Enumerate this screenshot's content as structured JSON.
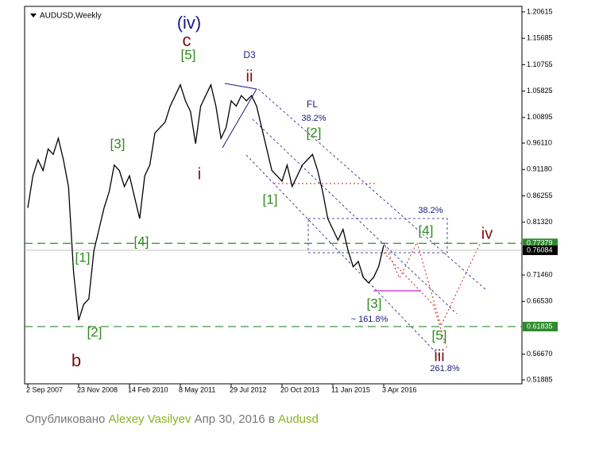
{
  "chart_data": {
    "type": "line",
    "title": "AUDUSD,Weekly",
    "color": "#000000",
    "categories": [
      "2 Sep 2007",
      null,
      null,
      null,
      null,
      null,
      null,
      null,
      null,
      null,
      "23 Nov 2008",
      null,
      null,
      null,
      null,
      null,
      null,
      null,
      null,
      null,
      "14 Feb 2010",
      null,
      null,
      null,
      null,
      null,
      null,
      null,
      null,
      null,
      "8 May 2011",
      null,
      null,
      null,
      null,
      null,
      null,
      null,
      null,
      null,
      "29 Jul 2012",
      null,
      null,
      null,
      null,
      null,
      null,
      null,
      null,
      null,
      "20 Oct 2013",
      null,
      null,
      null,
      null,
      null,
      null,
      null,
      null,
      null,
      "11 Jan 2015",
      null,
      null,
      null,
      null,
      null,
      null,
      null,
      null,
      null,
      "3 Apr 2016"
    ],
    "values": [
      0.84,
      0.9,
      0.93,
      0.91,
      0.95,
      0.94,
      0.97,
      0.93,
      0.88,
      0.72,
      0.63,
      0.66,
      0.67,
      0.76,
      0.8,
      0.84,
      0.87,
      0.92,
      0.91,
      0.88,
      0.9,
      0.86,
      0.82,
      0.9,
      0.92,
      0.98,
      0.99,
      1.0,
      1.03,
      1.05,
      1.07,
      1.04,
      1.02,
      0.96,
      1.03,
      1.05,
      1.07,
      1.03,
      0.97,
      0.99,
      1.04,
      1.03,
      1.05,
      1.04,
      1.05,
      1.03,
      0.99,
      0.95,
      0.91,
      0.9,
      0.89,
      0.92,
      0.88,
      0.9,
      0.92,
      0.93,
      0.94,
      0.91,
      0.87,
      0.82,
      0.8,
      0.78,
      0.8,
      0.76,
      0.73,
      0.74,
      0.71,
      0.7,
      0.71,
      0.73,
      0.77
    ],
    "ylim": [
      0.5114,
      1.2165
    ],
    "yticks": [
      1.20615,
      1.15685,
      1.10755,
      1.05825,
      1.00895,
      {
        "value": 0.9611,
        "label": "0.96110"
      },
      {
        "value": 0.9118,
        "label": "0.91180"
      },
      0.86255,
      {
        "value": 0.8132,
        "label": "0.81320"
      },
      {
        "value": 0.7146,
        "label": "0.71460"
      },
      {
        "value": 0.6653,
        "label": "0.66530"
      },
      {
        "value": 0.5667,
        "label": "0.56670"
      },
      0.51885
    ],
    "levels": [
      {
        "value": 0.77379,
        "color": "#2e8b2e",
        "dashed": true
      },
      {
        "value": 0.76084,
        "color": "#000000",
        "dashed": false
      },
      {
        "value": 0.61835,
        "color": "#2e8b2e",
        "dashed": true
      }
    ],
    "annotations": [
      {
        "text": "(iv)",
        "color": "#1a1a80"
      },
      {
        "text": "c",
        "color": "#7a1010"
      },
      {
        "text": "[5]",
        "color": "#2f8a1f"
      },
      {
        "text": "D3",
        "color": "#1a1a80"
      },
      {
        "text": "ii",
        "color": "#7a1010"
      },
      {
        "text": "FL",
        "color": "#1a1a80"
      },
      {
        "text": "38.2%",
        "color": "#1a1a80"
      },
      {
        "text": "[2]",
        "color": "#2f8a1f"
      },
      {
        "text": "[3]",
        "color": "#2f8a1f"
      },
      {
        "text": "i",
        "color": "#7a1010"
      },
      {
        "text": "[1]",
        "color": "#2f8a1f"
      },
      {
        "text": "38.2%",
        "color": "#1a1a80"
      },
      {
        "text": "[4]",
        "color": "#2f8a1f"
      },
      {
        "text": "iv",
        "color": "#7a1010"
      },
      {
        "text": "[4]",
        "color": "#2f8a1f"
      },
      {
        "text": "[1]",
        "color": "#2f8a1f"
      },
      {
        "text": "[3]",
        "color": "#2f8a1f"
      },
      {
        "text": "~ 161.8%",
        "color": "#1a1a80"
      },
      {
        "text": "[2]",
        "color": "#2f8a1f"
      },
      {
        "text": "[5]",
        "color": "#2f8a1f"
      },
      {
        "text": "iii",
        "color": "#7a1010"
      },
      {
        "text": "b",
        "color": "#7a1010"
      },
      {
        "text": "261.8%",
        "color": "#1a1a80"
      }
    ]
  },
  "caption": {
    "prefix": "Опубликовано",
    "author": "Alexey Vasilyev",
    "date": "Апр 30, 2016 в",
    "tag": "Audusd"
  }
}
